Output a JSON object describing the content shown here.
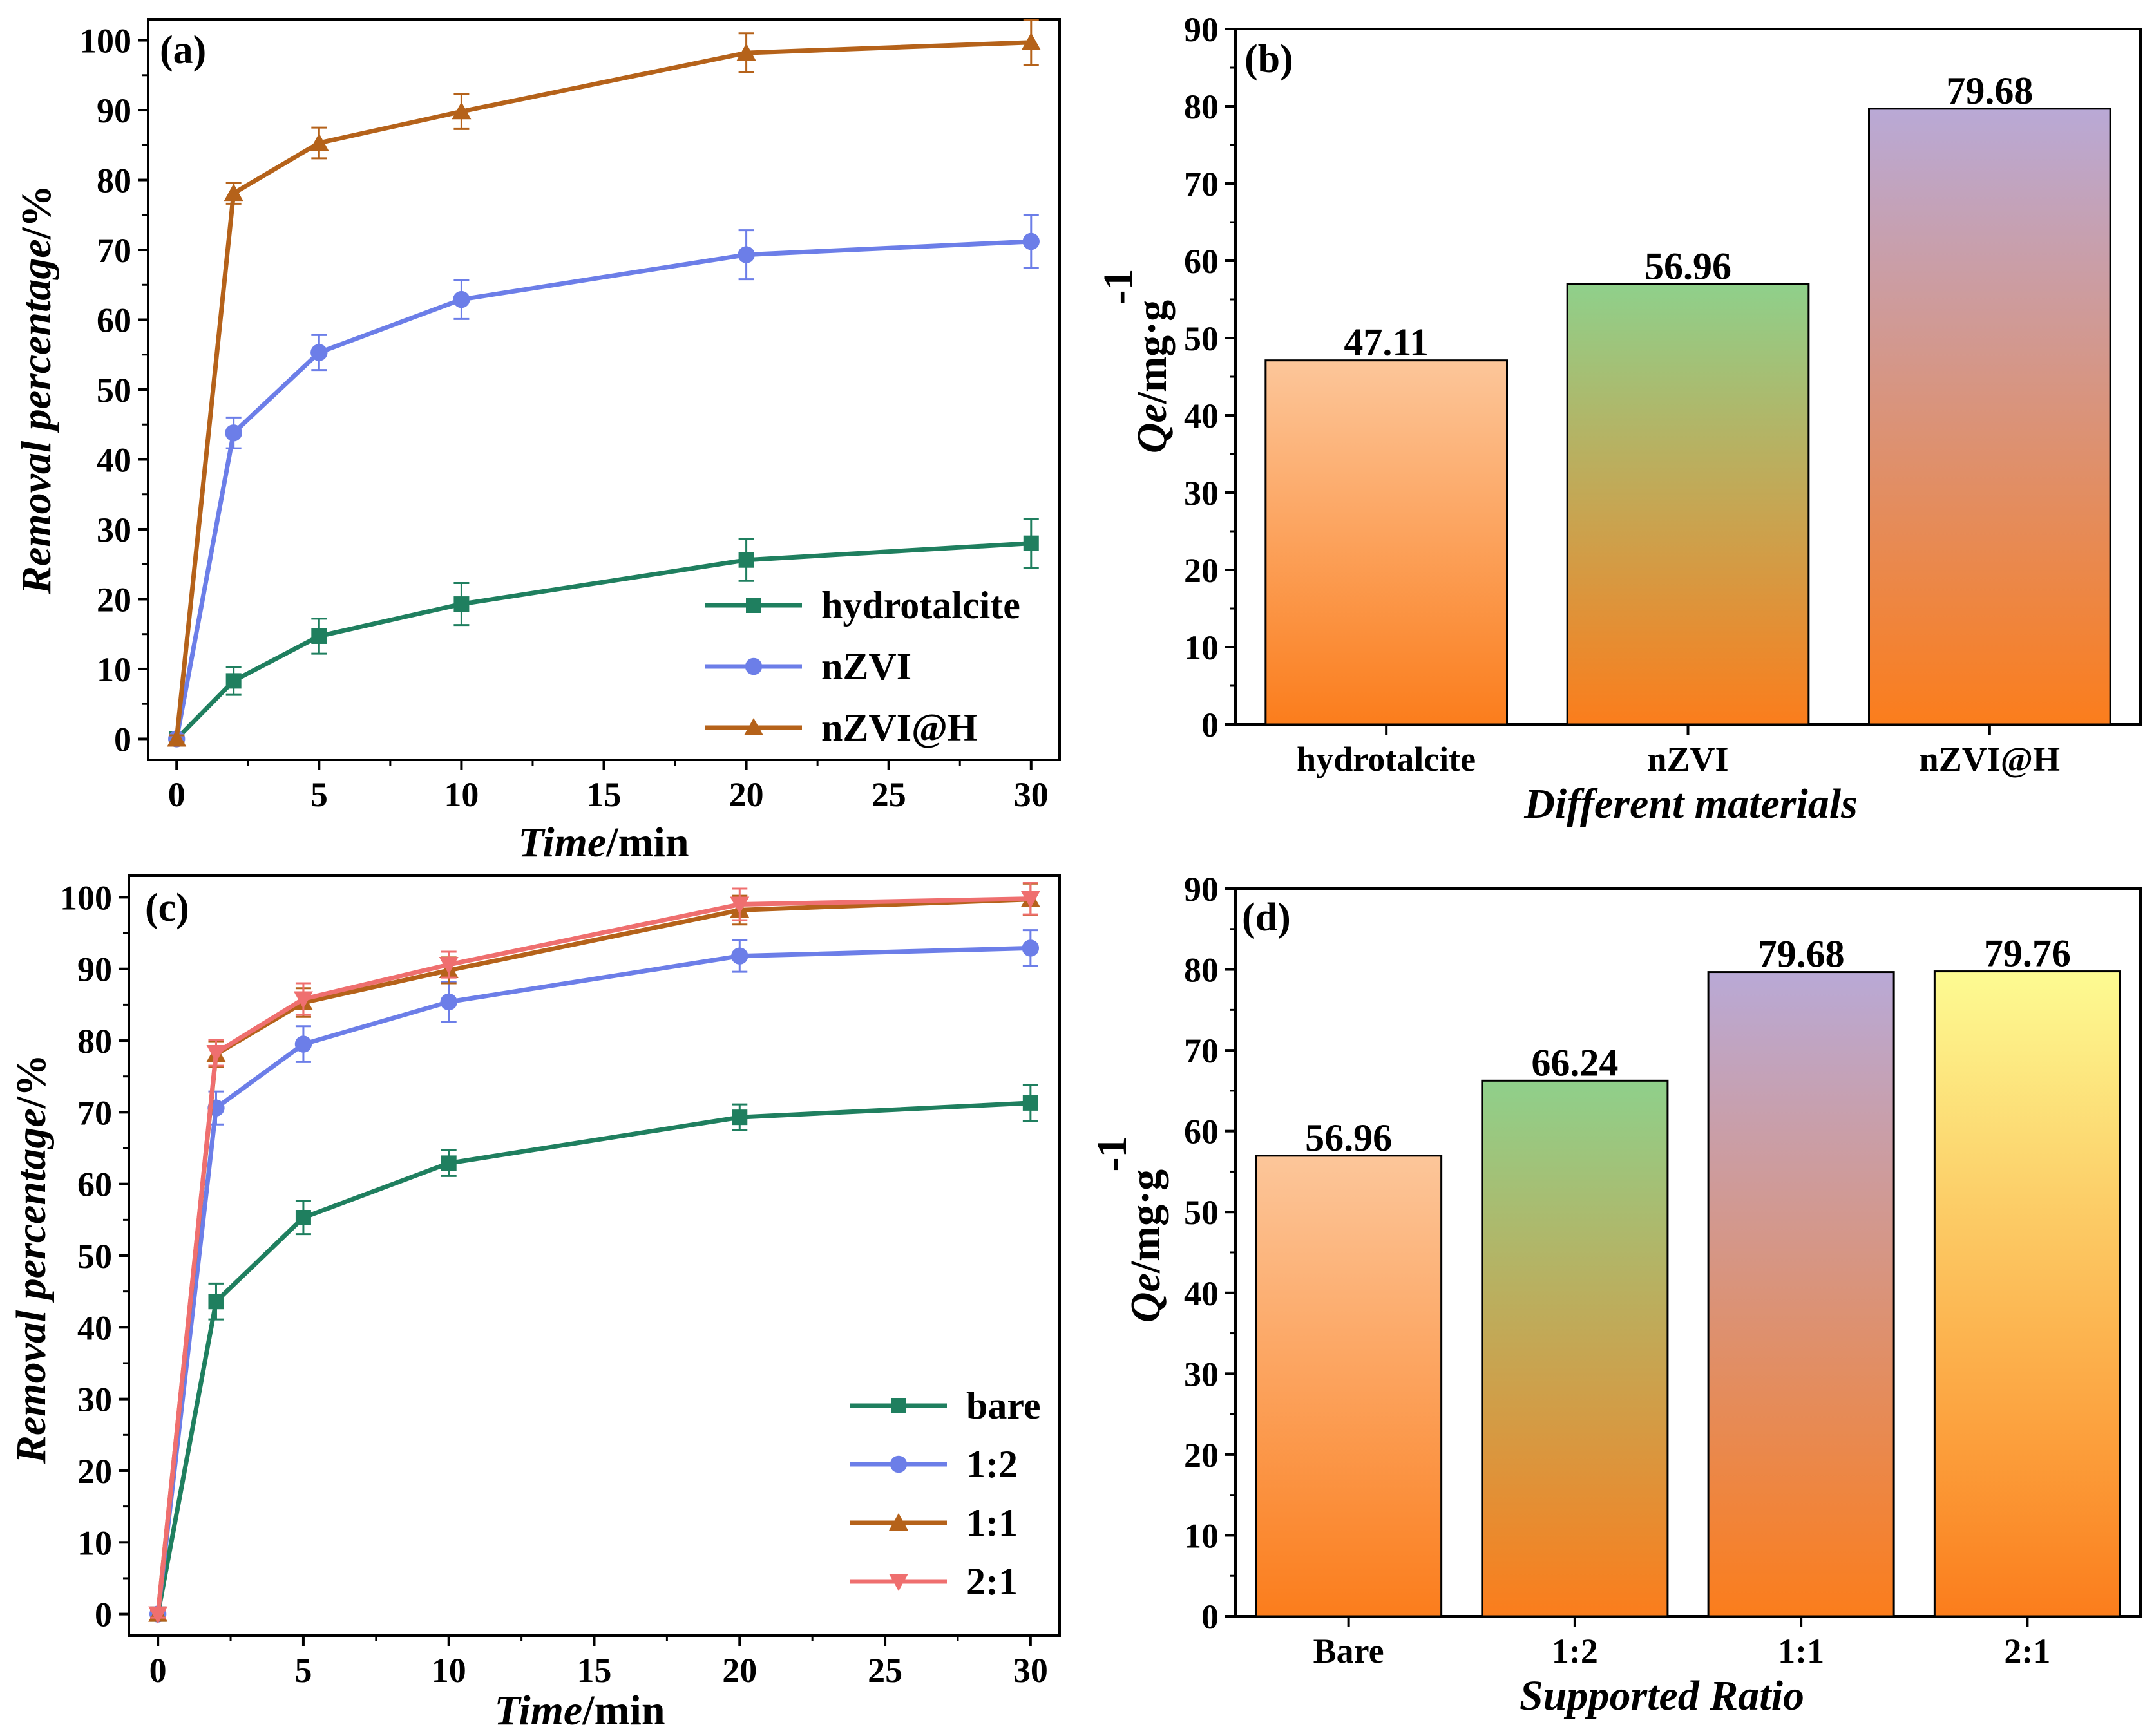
{
  "chart_data": [
    {
      "panel": "(a)",
      "type": "line",
      "xlabel_italic": "Time",
      "xlabel_rest": "/min",
      "ylabel_italic": "Removal percentage",
      "ylabel_rest": "/%",
      "xlim": [
        -1,
        31
      ],
      "ylim": [
        -3,
        103
      ],
      "xticks": [
        0,
        5,
        10,
        15,
        20,
        25,
        30
      ],
      "yticks": [
        0,
        10,
        20,
        30,
        40,
        50,
        60,
        70,
        80,
        90,
        100
      ],
      "x": [
        0,
        2,
        5,
        10,
        20,
        30
      ],
      "series": [
        {
          "name": "hydrotalcite",
          "color": "#1f7f5f",
          "marker": "square",
          "values": [
            0,
            8.3,
            14.7,
            19.3,
            25.6,
            28.0
          ],
          "errors": [
            0.5,
            2.0,
            2.5,
            3.0,
            3.0,
            3.5
          ]
        },
        {
          "name": "nZVI",
          "color": "#6c7ee8",
          "marker": "circle",
          "values": [
            0,
            43.8,
            55.3,
            62.9,
            69.3,
            71.2
          ],
          "errors": [
            0.5,
            2.2,
            2.5,
            2.8,
            3.5,
            3.8
          ]
        },
        {
          "name": "nZVI@H",
          "color": "#b5621a",
          "marker": "triangle",
          "values": [
            0,
            78.1,
            85.3,
            89.8,
            98.2,
            99.7
          ],
          "errors": [
            0.5,
            1.5,
            2.2,
            2.5,
            2.8,
            3.2
          ]
        }
      ]
    },
    {
      "panel": "(b)",
      "type": "bar",
      "xlabel": "Different materials",
      "ylabel_italic": "Qe",
      "ylabel_rest": "/mg·g",
      "ylabel_sup": "-1",
      "ylim": [
        0,
        90
      ],
      "yticks": [
        0,
        10,
        20,
        30,
        40,
        50,
        60,
        70,
        80,
        90
      ],
      "categories": [
        "hydrotalcite",
        "nZVI",
        "nZVI@H"
      ],
      "values": [
        47.11,
        56.96,
        79.68
      ],
      "value_labels": [
        "47.11",
        "56.96",
        "79.68"
      ],
      "bar_top_colors": [
        "#fcc69a",
        "#8fd08b",
        "#b9a9d6"
      ]
    },
    {
      "panel": "(c)",
      "type": "line",
      "xlabel_italic": "Time",
      "xlabel_rest": "/min",
      "ylabel_italic": "Removal percentage",
      "ylabel_rest": "/%",
      "xlim": [
        -1,
        31
      ],
      "ylim": [
        -3,
        103
      ],
      "xticks": [
        0,
        5,
        10,
        15,
        20,
        25,
        30
      ],
      "yticks": [
        0,
        10,
        20,
        30,
        40,
        50,
        60,
        70,
        80,
        90,
        100
      ],
      "x": [
        0,
        2,
        5,
        10,
        20,
        30
      ],
      "series": [
        {
          "name": "bare",
          "color": "#1f7f5f",
          "marker": "square",
          "values": [
            0,
            43.6,
            55.3,
            62.9,
            69.3,
            71.3
          ],
          "errors": [
            0.5,
            2.5,
            2.3,
            1.8,
            1.8,
            2.5
          ]
        },
        {
          "name": "1:2",
          "color": "#6c7ee8",
          "marker": "circle",
          "values": [
            0,
            70.6,
            79.5,
            85.4,
            91.8,
            92.9
          ],
          "errors": [
            0.5,
            2.3,
            2.5,
            2.8,
            2.2,
            2.5
          ]
        },
        {
          "name": "1:1",
          "color": "#b5621a",
          "marker": "triangle",
          "values": [
            0,
            78.1,
            85.3,
            89.8,
            98.2,
            99.7
          ],
          "errors": [
            0.5,
            1.8,
            2.0,
            1.8,
            2.0,
            2.2
          ]
        },
        {
          "name": "2:1",
          "color": "#ef6f6f",
          "marker": "triangle-down",
          "values": [
            0,
            78.3,
            85.8,
            90.6,
            99.0,
            99.8
          ],
          "errors": [
            0.5,
            1.8,
            2.2,
            1.8,
            2.2,
            2.2
          ]
        }
      ]
    },
    {
      "panel": "(d)",
      "type": "bar",
      "xlabel": "Supported Ratio",
      "ylabel_italic": "Qe",
      "ylabel_rest": "/mg·g",
      "ylabel_sup": "-1",
      "ylim": [
        0,
        90
      ],
      "yticks": [
        0,
        10,
        20,
        30,
        40,
        50,
        60,
        70,
        80,
        90
      ],
      "categories": [
        "Bare",
        "1:2",
        "1:1",
        "2:1"
      ],
      "values": [
        56.96,
        66.24,
        79.68,
        79.76
      ],
      "value_labels": [
        "56.96",
        "66.24",
        "79.68",
        "79.76"
      ],
      "bar_top_colors": [
        "#fcc69a",
        "#8fd08b",
        "#b9a9d6",
        "#fdfb92"
      ]
    }
  ]
}
